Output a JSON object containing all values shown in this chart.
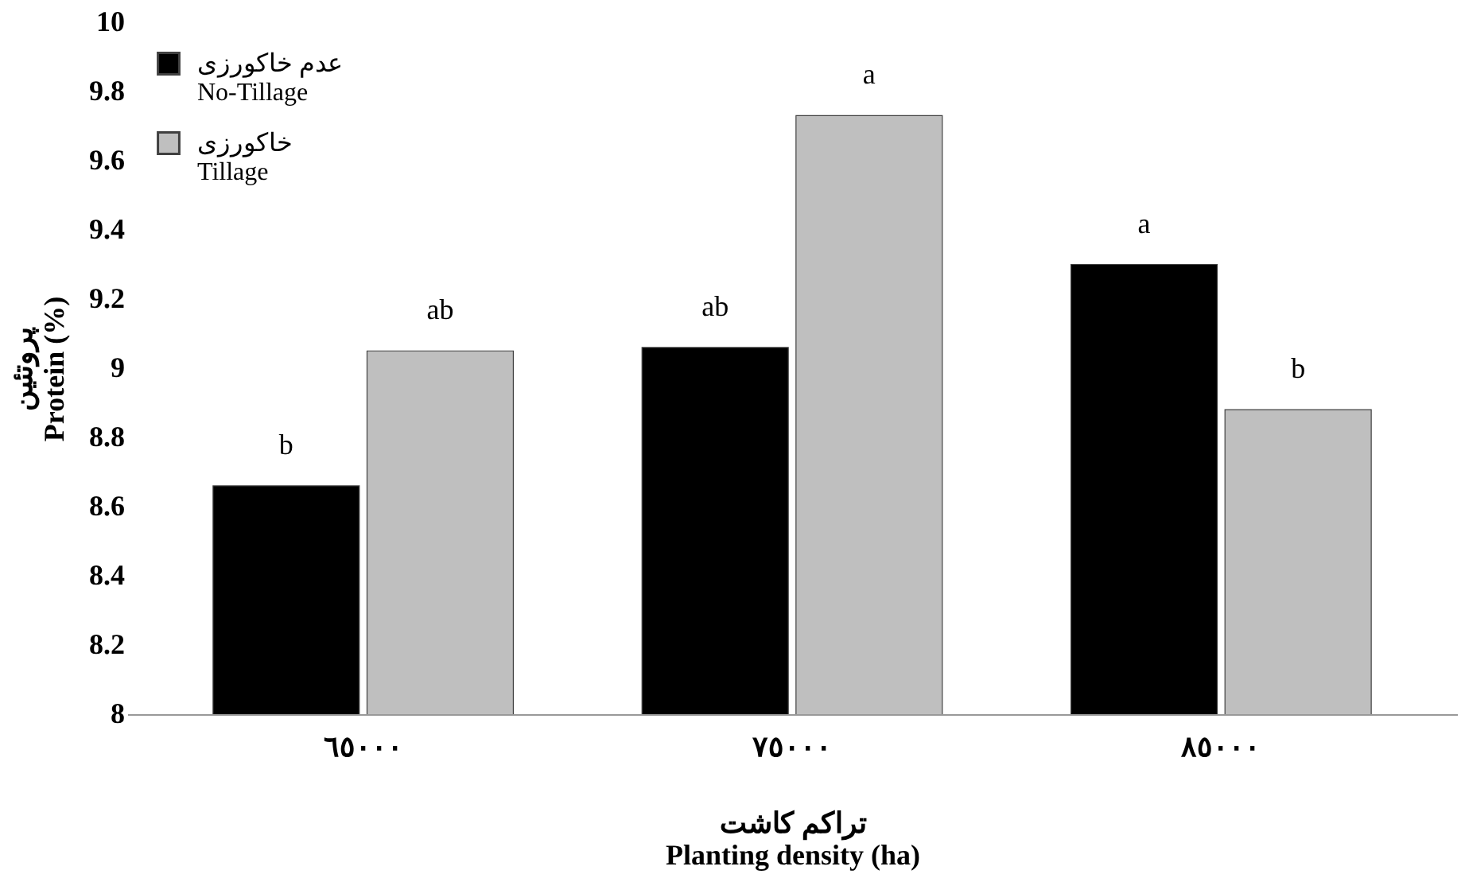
{
  "chart_data": {
    "type": "bar",
    "xlabel": "تراکم کاشت\nPlanting density (ha)",
    "ylabel": "پروتئین\nProtein (%)",
    "categories": [
      "٦٥٠٠٠",
      "٧٥٠٠٠",
      "٨٥٠٠٠"
    ],
    "series": [
      {
        "name": "عدم خاکورزی\nNo-Tillage",
        "color": "#000000",
        "values": [
          8.66,
          9.06,
          9.3
        ]
      },
      {
        "name": "خاکورزی\nTillage",
        "color": "#bfbfbf",
        "values": [
          9.05,
          9.73,
          8.88
        ]
      }
    ],
    "ylim": [
      8,
      10
    ],
    "yticks": [
      8,
      8.2,
      8.4,
      8.6,
      8.8,
      9,
      9.2,
      9.4,
      9.6,
      9.8,
      10
    ],
    "grid": false,
    "legend": "top left",
    "annotations": [
      {
        "text": "b",
        "x": "٦٥٠٠٠",
        "y": 8.66
      },
      {
        "text": "ab",
        "x": "٦٥٠٠٠",
        "y": 9.05
      },
      {
        "text": "ab",
        "x": "٧٥٠٠٠",
        "y": 9.06
      },
      {
        "text": "a",
        "x": "٧٥٠٠٠",
        "y": 9.73
      },
      {
        "text": "a",
        "x": "٨٥٠٠٠",
        "y": 9.3
      },
      {
        "text": "b",
        "x": "٨٥٠٠٠",
        "y": 8.88
      }
    ]
  }
}
